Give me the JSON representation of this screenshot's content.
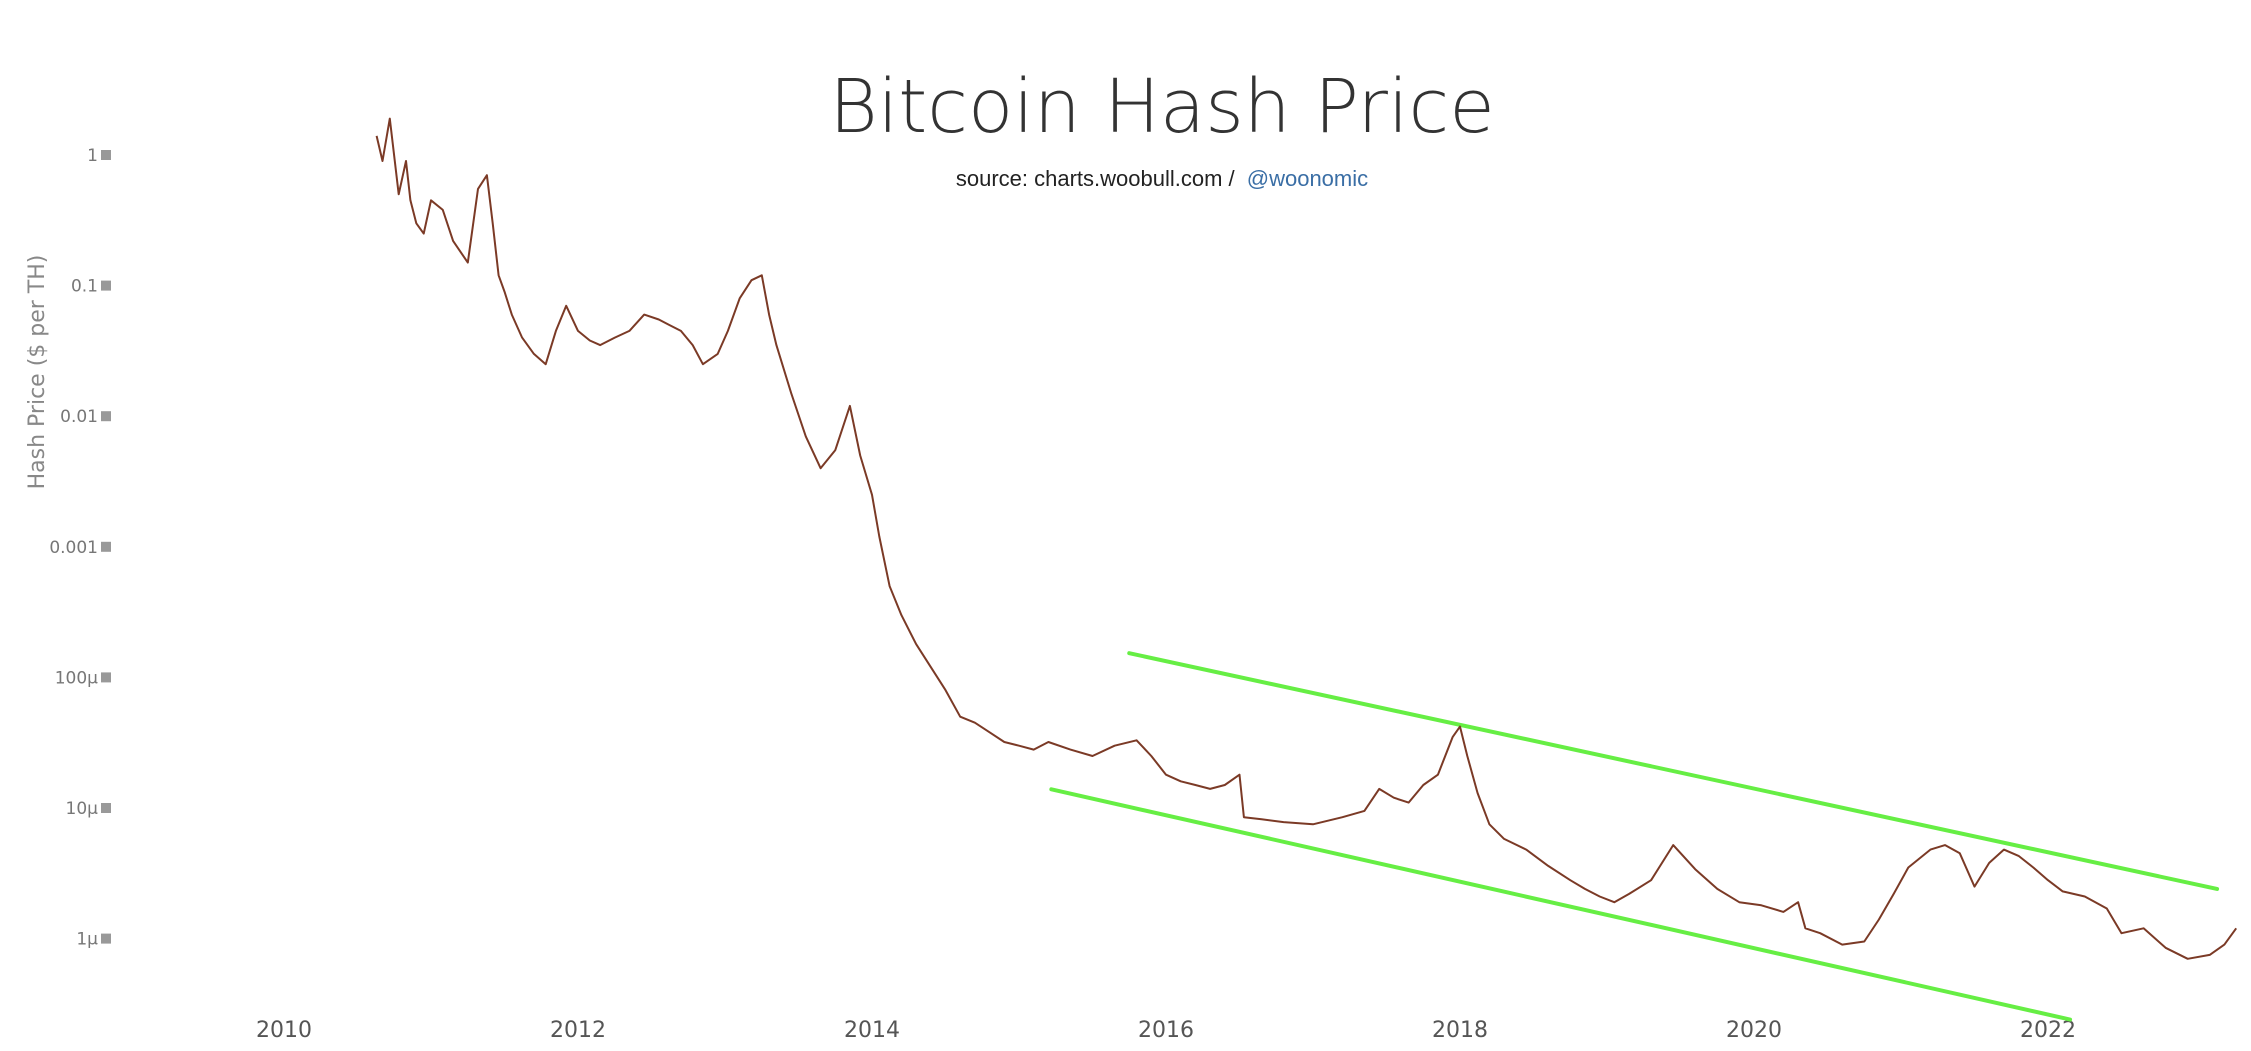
{
  "chart_data": {
    "type": "line",
    "title": "Bitcoin Hash Price",
    "subtitle": "source: charts.woobull.com /",
    "subtitle_handle": "@woonomic",
    "xlabel": "",
    "ylabel": "Hash Price ($ per TH)",
    "yscale": "log",
    "x_range": [
      2009.5,
      2023.3
    ],
    "y_range": [
      3e-07,
      3.5
    ],
    "x_ticks": [
      2010,
      2012,
      2014,
      2016,
      2018,
      2020,
      2022
    ],
    "x_tick_labels": [
      "2010",
      "2012",
      "2014",
      "2016",
      "2018",
      "2020",
      "2022"
    ],
    "y_ticks": [
      1,
      0.1,
      0.01,
      0.001,
      0.0001,
      1e-05,
      1e-06
    ],
    "y_tick_labels": [
      "1",
      "0.1",
      "0.01",
      "0.001",
      "100μ",
      "10μ",
      "1μ"
    ],
    "grid": false,
    "legend": "none",
    "colors": {
      "price_line": "#7b3a26",
      "channel_lines": "#66ee44",
      "tick_marker": "#999999",
      "handle_link": "#3a6ea5"
    },
    "series": [
      {
        "x": [
          2010.63,
          2010.67,
          2010.72,
          2010.78,
          2010.83,
          2010.86,
          2010.9,
          2010.95,
          2011.0,
          2011.08,
          2011.15,
          2011.25,
          2011.32,
          2011.38,
          2011.42,
          2011.46,
          2011.5,
          2011.55,
          2011.62,
          2011.7,
          2011.78,
          2011.85,
          2011.92,
          2012.0,
          2012.08,
          2012.15,
          2012.25,
          2012.35,
          2012.45,
          2012.55,
          2012.62,
          2012.7,
          2012.78,
          2012.85,
          2012.95,
          2013.02,
          2013.1,
          2013.18,
          2013.25,
          2013.3,
          2013.35,
          2013.45,
          2013.55,
          2013.65,
          2013.75,
          2013.85,
          2013.92,
          2014.0,
          2014.05,
          2014.12,
          2014.2,
          2014.3,
          2014.4,
          2014.5,
          2014.6,
          2014.7,
          2014.8,
          2014.9,
          2015.0,
          2015.1,
          2015.2,
          2015.35,
          2015.5,
          2015.65,
          2015.8,
          2015.9,
          2016.0,
          2016.1,
          2016.2,
          2016.3,
          2016.4,
          2016.5,
          2016.53,
          2016.65,
          2016.8,
          2017.0,
          2017.2,
          2017.35,
          2017.45,
          2017.55,
          2017.65,
          2017.75,
          2017.85,
          2017.95,
          2018.0,
          2018.05,
          2018.12,
          2018.2,
          2018.3,
          2018.45,
          2018.6,
          2018.75,
          2018.85,
          2018.95,
          2019.05,
          2019.15,
          2019.3,
          2019.45,
          2019.6,
          2019.75,
          2019.9,
          2020.05,
          2020.2,
          2020.3,
          2020.35,
          2020.45,
          2020.6,
          2020.75,
          2020.85,
          2020.95,
          2021.05,
          2021.2,
          2021.3,
          2021.4,
          2021.5,
          2021.6,
          2021.7,
          2021.8,
          2021.9,
          2022.0,
          2022.1,
          2022.25,
          2022.4,
          2022.5,
          2022.65,
          2022.8,
          2022.95,
          2023.1,
          2023.2,
          2023.28
        ],
        "y": [
          1.4,
          0.9,
          1.9,
          0.5,
          0.9,
          0.45,
          0.3,
          0.25,
          0.45,
          0.38,
          0.22,
          0.15,
          0.55,
          0.7,
          0.3,
          0.12,
          0.09,
          0.06,
          0.04,
          0.03,
          0.025,
          0.045,
          0.07,
          0.045,
          0.038,
          0.035,
          0.04,
          0.045,
          0.06,
          0.055,
          0.05,
          0.045,
          0.035,
          0.025,
          0.03,
          0.045,
          0.08,
          0.11,
          0.12,
          0.06,
          0.035,
          0.015,
          0.007,
          0.004,
          0.0055,
          0.012,
          0.005,
          0.0025,
          0.0012,
          0.0005,
          0.0003,
          0.00018,
          0.00012,
          8e-05,
          5e-05,
          4.5e-05,
          3.8e-05,
          3.2e-05,
          3e-05,
          2.8e-05,
          3.2e-05,
          2.8e-05,
          2.5e-05,
          3e-05,
          3.3e-05,
          2.5e-05,
          1.8e-05,
          1.6e-05,
          1.5e-05,
          1.4e-05,
          1.5e-05,
          1.8e-05,
          8.5e-06,
          8.2e-06,
          7.8e-06,
          7.5e-06,
          8.5e-06,
          9.5e-06,
          1.4e-05,
          1.2e-05,
          1.1e-05,
          1.5e-05,
          1.8e-05,
          3.5e-05,
          4.2e-05,
          2.5e-05,
          1.3e-05,
          7.5e-06,
          5.8e-06,
          4.8e-06,
          3.6e-06,
          2.8e-06,
          2.4e-06,
          2.1e-06,
          1.9e-06,
          2.2e-06,
          2.8e-06,
          5.2e-06,
          3.4e-06,
          2.4e-06,
          1.9e-06,
          1.8e-06,
          1.6e-06,
          1.9e-06,
          1.2e-06,
          1.1e-06,
          9e-07,
          9.5e-07,
          1.4e-06,
          2.2e-06,
          3.5e-06,
          4.8e-06,
          5.2e-06,
          4.5e-06,
          2.5e-06,
          3.8e-06,
          4.8e-06,
          4.3e-06,
          3.5e-06,
          2.8e-06,
          2.3e-06,
          2.1e-06,
          1.7e-06,
          1.1e-06,
          1.2e-06,
          8.5e-07,
          7e-07,
          7.5e-07,
          9e-07,
          1.2e-06
        ]
      }
    ],
    "trendlines": [
      {
        "x": [
          2015.75,
          2023.15
        ],
        "y": [
          0.0001533,
          2.4e-06
        ]
      },
      {
        "x": [
          2015.22,
          2022.15
        ],
        "y": [
          1.39e-05,
          2.4e-07
        ]
      }
    ]
  }
}
